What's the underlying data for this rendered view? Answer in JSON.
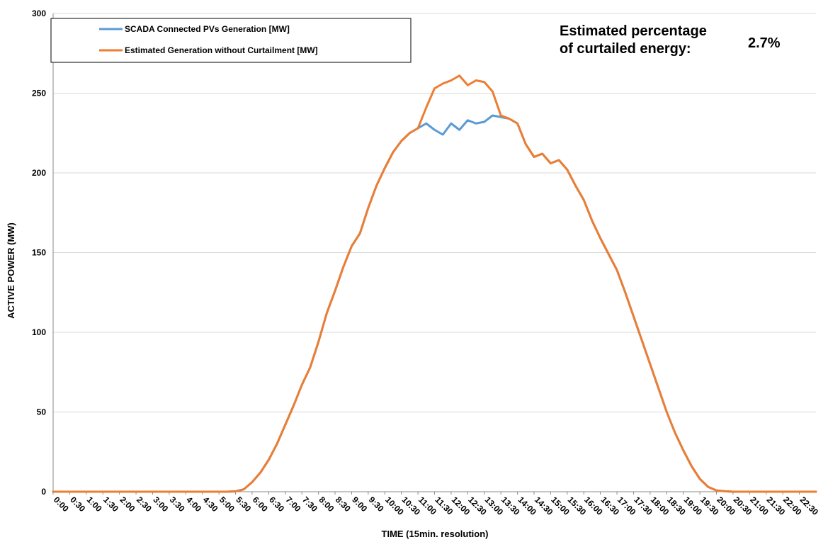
{
  "chart_data": {
    "type": "line",
    "title": "",
    "xlabel": "TIME (15min. resolution)",
    "ylabel": "ACTIVE POWER (MW)",
    "ylim": [
      0,
      300
    ],
    "yticks": [
      0,
      50,
      100,
      150,
      200,
      250,
      300
    ],
    "grid": "horizontal",
    "legend_position": "top-left",
    "x_tick_labels": [
      "0:00",
      "0:30",
      "1:00",
      "1:30",
      "2:00",
      "2:30",
      "3:00",
      "3:30",
      "4:00",
      "4:30",
      "5:00",
      "5:30",
      "6:00",
      "6:30",
      "7:00",
      "7:30",
      "8:00",
      "8:30",
      "9:00",
      "9:30",
      "10:00",
      "10:30",
      "11:00",
      "11:30",
      "12:00",
      "12:30",
      "13:00",
      "13:30",
      "14:00",
      "14:30",
      "15:00",
      "15:30",
      "16:00",
      "16:30",
      "17:00",
      "17:30",
      "18:00",
      "18:30",
      "19:00",
      "19:30",
      "20:00",
      "20:30",
      "21:00",
      "21:30",
      "22:00",
      "22:30"
    ],
    "series": [
      {
        "name": "SCADA Connected PVs Generation [MW]",
        "color": "#5b9bd5",
        "values": [
          0,
          0,
          0,
          0,
          0,
          0,
          0,
          0,
          0,
          0,
          0,
          0,
          0,
          0,
          0,
          0,
          0,
          0,
          0,
          0,
          0,
          0,
          0.2,
          1.5,
          6,
          12,
          20,
          30,
          42,
          54,
          67,
          78,
          94,
          112,
          126,
          141,
          154,
          162,
          178,
          192,
          203,
          213,
          220,
          225,
          228,
          231,
          227,
          224,
          231,
          227,
          233,
          231,
          232,
          236,
          235,
          234,
          231,
          218,
          210,
          212,
          206,
          208,
          202,
          192,
          183,
          170,
          159,
          149,
          139,
          125,
          110,
          95,
          80,
          65,
          50,
          37,
          26,
          16,
          8,
          3,
          0.8,
          0.3,
          0,
          0,
          0,
          0,
          0,
          0,
          0,
          0,
          0,
          0,
          0
        ]
      },
      {
        "name": "Estimated Generation without Curtailment [MW]",
        "color": "#ed7d31",
        "values": [
          0,
          0,
          0,
          0,
          0,
          0,
          0,
          0,
          0,
          0,
          0,
          0,
          0,
          0,
          0,
          0,
          0,
          0,
          0,
          0,
          0,
          0,
          0.2,
          1.5,
          6,
          12,
          20,
          30,
          42,
          54,
          67,
          78,
          94,
          112,
          126,
          141,
          154,
          162,
          178,
          192,
          203,
          213,
          220,
          225,
          228,
          241,
          253,
          256,
          258,
          261,
          255,
          258,
          257,
          251,
          236,
          234,
          231,
          218,
          210,
          212,
          206,
          208,
          202,
          192,
          183,
          170,
          159,
          149,
          139,
          125,
          110,
          95,
          80,
          65,
          50,
          37,
          26,
          16,
          8,
          3,
          0.8,
          0.3,
          0,
          0,
          0,
          0,
          0,
          0,
          0,
          0,
          0,
          0,
          0
        ]
      }
    ],
    "annotations": {
      "label": "Estimated percentage of curtailed energy:",
      "label_line1": "Estimated percentage",
      "label_line2": "of curtailed energy:",
      "value": "2.7%"
    }
  }
}
